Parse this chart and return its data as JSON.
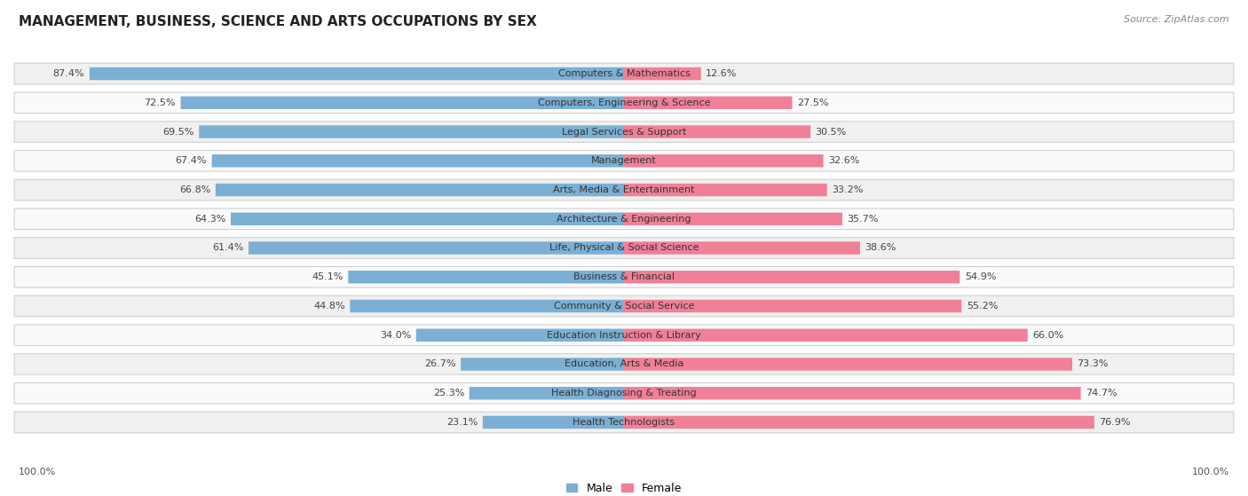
{
  "title": "MANAGEMENT, BUSINESS, SCIENCE AND ARTS OCCUPATIONS BY SEX",
  "source": "Source: ZipAtlas.com",
  "categories": [
    "Computers & Mathematics",
    "Computers, Engineering & Science",
    "Legal Services & Support",
    "Management",
    "Arts, Media & Entertainment",
    "Architecture & Engineering",
    "Life, Physical & Social Science",
    "Business & Financial",
    "Community & Social Service",
    "Education Instruction & Library",
    "Education, Arts & Media",
    "Health Diagnosing & Treating",
    "Health Technologists"
  ],
  "male_pct": [
    87.4,
    72.5,
    69.5,
    67.4,
    66.8,
    64.3,
    61.4,
    45.1,
    44.8,
    34.0,
    26.7,
    25.3,
    23.1
  ],
  "female_pct": [
    12.6,
    27.5,
    30.5,
    32.6,
    33.2,
    35.7,
    38.6,
    54.9,
    55.2,
    66.0,
    73.3,
    74.7,
    76.9
  ],
  "male_color": "#7bafd4",
  "female_color": "#f08097",
  "bg_even": "#f0f0f0",
  "bg_odd": "#fafafa",
  "label_fontsize": 8.0,
  "pct_fontsize": 8.0,
  "title_fontsize": 11,
  "legend_fontsize": 9,
  "source_fontsize": 8
}
